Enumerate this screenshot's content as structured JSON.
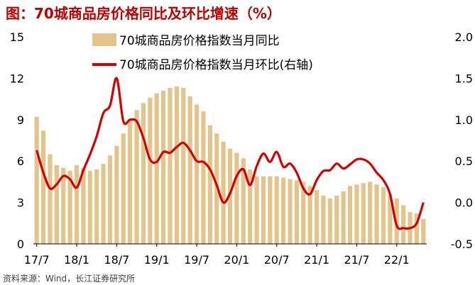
{
  "title": "图：70城商品房价格同比及环比增速（%）",
  "source": "资料来源：Wind，长江证券研究所",
  "colors": {
    "bar": "#e3c48a",
    "line": "#d60000",
    "title": "#c00000"
  },
  "chart_data": {
    "type": "bar",
    "series": [
      {
        "name": "70城商品房价格指数当月同比",
        "type": "bar",
        "axis": "left",
        "values": [
          9.2,
          8.2,
          6.5,
          5.7,
          5.5,
          5.3,
          5.7,
          5.5,
          5.3,
          5.4,
          5.8,
          6.4,
          7.1,
          8.0,
          9.0,
          9.7,
          10.2,
          10.6,
          10.9,
          11.1,
          11.3,
          11.4,
          11.3,
          10.7,
          10.1,
          9.6,
          8.6,
          8.0,
          7.4,
          6.9,
          6.6,
          6.2,
          5.4,
          4.9,
          4.9,
          4.9,
          4.9,
          4.8,
          4.7,
          4.6,
          4.5,
          4.2,
          3.9,
          3.5,
          3.3,
          3.5,
          3.8,
          4.2,
          4.3,
          4.4,
          4.5,
          4.3,
          4.1,
          3.6,
          3.3,
          2.8,
          2.3,
          2.2,
          1.8
        ]
      },
      {
        "name": "70城商品房价格指数当月环比(右轴)",
        "type": "line",
        "axis": "right",
        "values": [
          0.63,
          0.36,
          0.17,
          0.22,
          0.32,
          0.28,
          0.18,
          0.39,
          0.58,
          0.8,
          1.08,
          1.17,
          1.5,
          0.98,
          1.0,
          0.98,
          0.78,
          0.52,
          0.49,
          0.61,
          0.6,
          0.67,
          0.72,
          0.63,
          0.5,
          0.49,
          0.4,
          0.21,
          0.0,
          0.11,
          0.32,
          0.4,
          0.21,
          0.44,
          0.59,
          0.49,
          0.61,
          0.43,
          0.47,
          0.36,
          0.17,
          0.1,
          0.27,
          0.38,
          0.39,
          0.47,
          0.41,
          0.46,
          0.52,
          0.52,
          0.47,
          0.36,
          0.27,
          0.1,
          -0.28,
          -0.31,
          -0.31,
          -0.25,
          0.0
        ]
      }
    ],
    "x_tick_labels": [
      "17/7",
      "18/1",
      "18/7",
      "19/1",
      "19/7",
      "20/1",
      "20/7",
      "21/1",
      "21/7",
      "22/1"
    ],
    "y_left": {
      "lim": [
        0,
        15
      ],
      "ticks": [
        0,
        3,
        6,
        9,
        12,
        15
      ],
      "tick_labels": [
        "0",
        "3",
        "6",
        "9",
        "12",
        "15"
      ]
    },
    "y_right": {
      "lim": [
        -0.5,
        2.0
      ],
      "ticks": [
        -0.5,
        0.0,
        0.5,
        1.0,
        1.5,
        2.0
      ],
      "tick_labels": [
        "-0.5",
        "0.0",
        "0.5",
        "1.0",
        "1.5",
        "2.0"
      ]
    },
    "legend": {
      "placement": "top-center"
    },
    "grid": false
  }
}
